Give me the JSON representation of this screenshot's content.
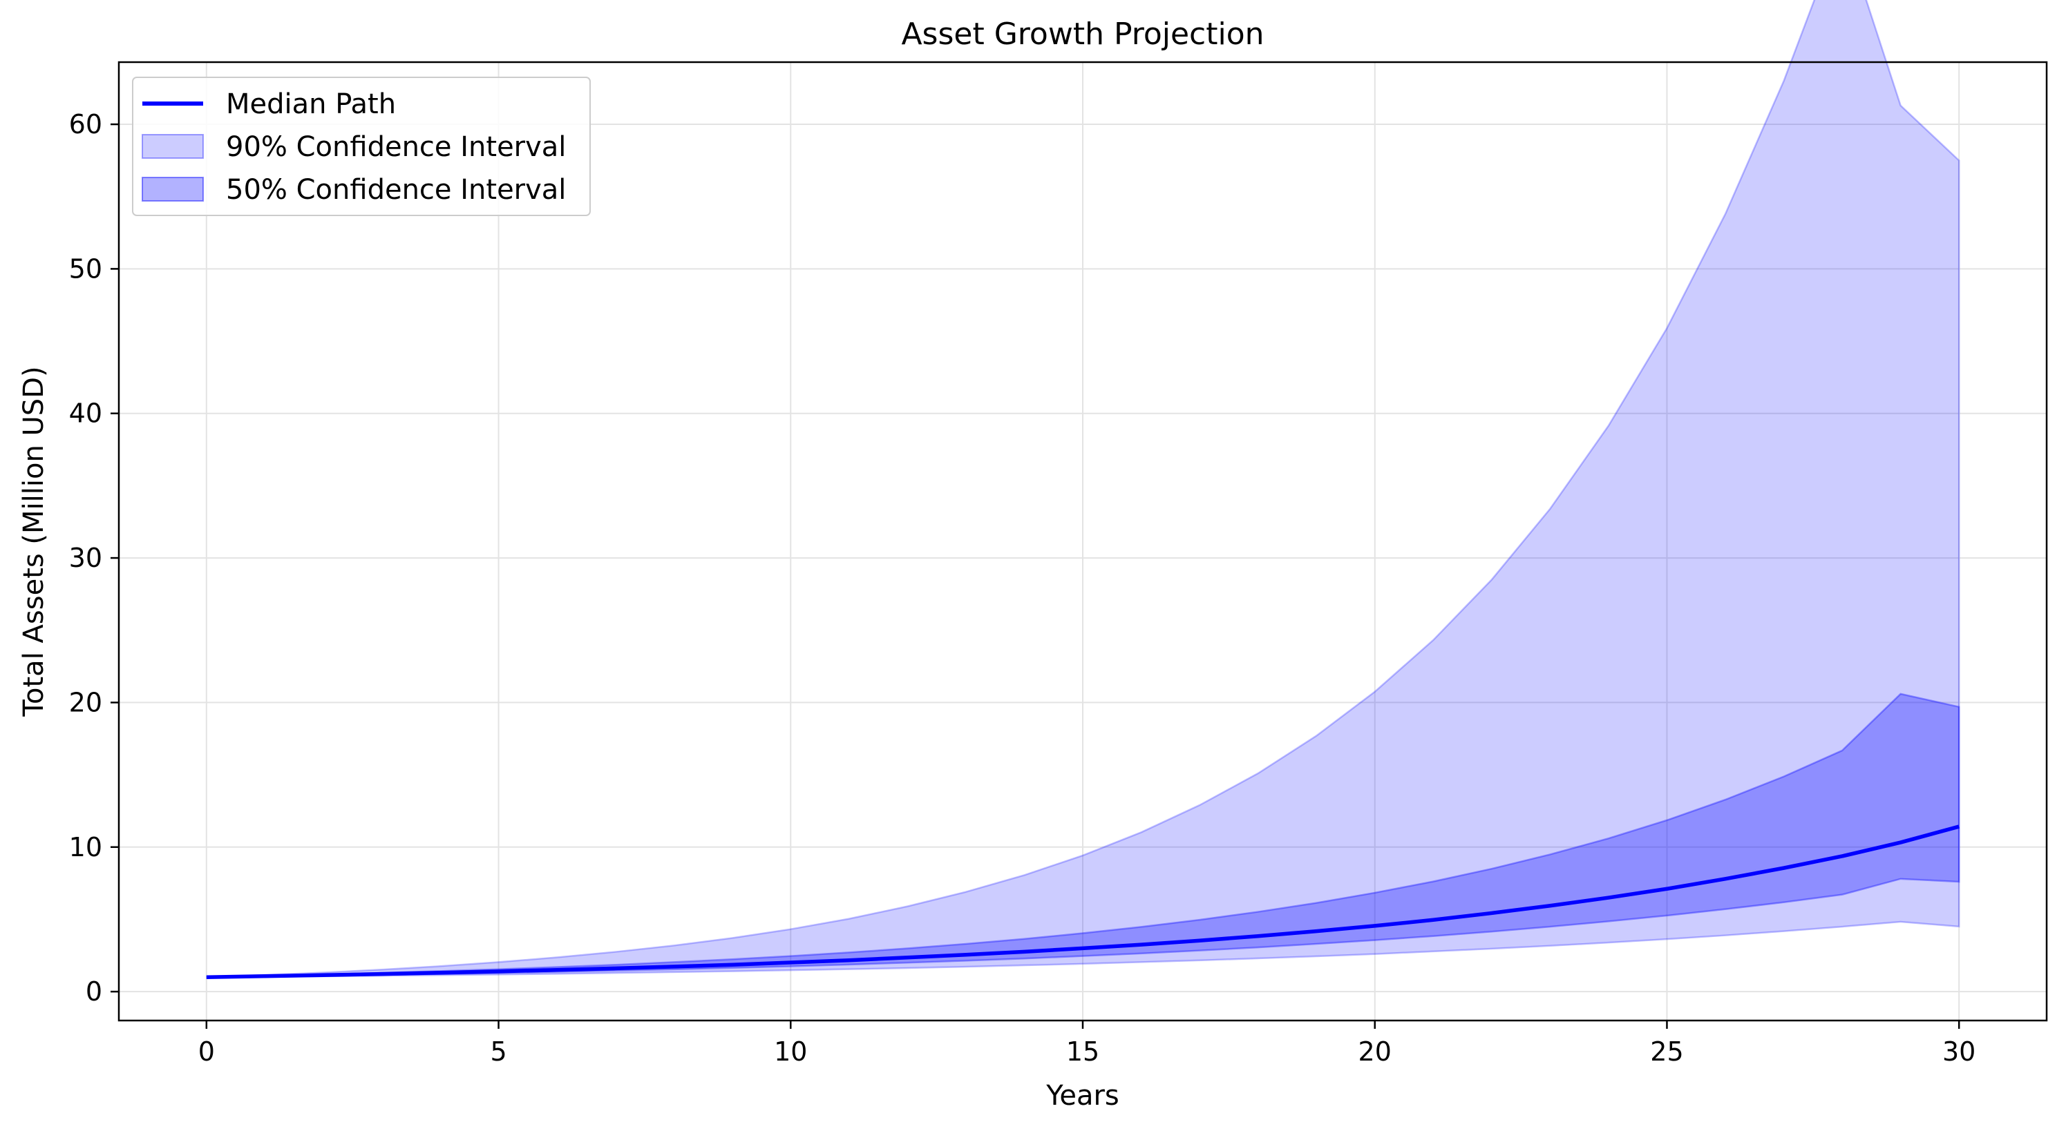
{
  "chart_data": {
    "type": "area",
    "title": "Asset Growth Projection",
    "xlabel": "Years",
    "ylabel": "Total Assets (Million USD)",
    "xlim": [
      -1.5,
      31.5
    ],
    "ylim": [
      -2,
      64.3
    ],
    "xticks": [
      0,
      5,
      10,
      15,
      20,
      25,
      30
    ],
    "yticks": [
      0,
      10,
      20,
      30,
      40,
      50,
      60
    ],
    "grid": true,
    "legend_position": "top-left",
    "x": [
      0,
      1,
      2,
      3,
      4,
      5,
      6,
      7,
      8,
      9,
      10,
      11,
      12,
      13,
      14,
      15,
      16,
      17,
      18,
      19,
      20,
      21,
      22,
      23,
      24,
      25,
      26,
      27,
      28,
      29,
      30
    ],
    "series": [
      {
        "name": "Median Path",
        "kind": "line",
        "color": "#0000ff",
        "values": [
          1.0,
          1.07,
          1.14,
          1.22,
          1.31,
          1.4,
          1.5,
          1.61,
          1.73,
          1.86,
          2.01,
          2.17,
          2.36,
          2.55,
          2.76,
          3.0,
          3.25,
          3.53,
          3.84,
          4.18,
          4.55,
          4.96,
          5.43,
          5.94,
          6.5,
          7.11,
          7.8,
          8.55,
          9.37,
          10.32,
          11.42
        ]
      },
      {
        "name": "90% Confidence Interval",
        "kind": "band",
        "color": "#0000ff",
        "opacity": 0.2,
        "lower": [
          1.0,
          1.03,
          1.06,
          1.1,
          1.14,
          1.18,
          1.23,
          1.29,
          1.35,
          1.41,
          1.48,
          1.55,
          1.63,
          1.72,
          1.82,
          1.92,
          2.04,
          2.16,
          2.3,
          2.44,
          2.6,
          2.78,
          2.97,
          3.17,
          3.39,
          3.63,
          3.89,
          4.18,
          4.49,
          4.83,
          4.5
        ],
        "upper": [
          1.0,
          1.15,
          1.32,
          1.52,
          1.76,
          2.04,
          2.37,
          2.75,
          3.19,
          3.71,
          4.32,
          5.04,
          5.9,
          6.9,
          8.06,
          9.42,
          11.02,
          12.9,
          15.1,
          17.7,
          20.75,
          24.32,
          28.5,
          33.4,
          39.15,
          45.9,
          53.8,
          63.0,
          73.7,
          61.3,
          57.5
        ]
      },
      {
        "name": "50% Confidence Interval",
        "kind": "band",
        "color": "#0000ff",
        "opacity": 0.3,
        "lower": [
          1.0,
          1.05,
          1.1,
          1.16,
          1.22,
          1.29,
          1.37,
          1.45,
          1.54,
          1.64,
          1.75,
          1.87,
          2.0,
          2.14,
          2.29,
          2.46,
          2.64,
          2.84,
          3.06,
          3.3,
          3.56,
          3.84,
          4.15,
          4.49,
          4.86,
          5.26,
          5.7,
          6.18,
          6.71,
          7.8,
          7.6
        ],
        "upper": [
          1.0,
          1.09,
          1.19,
          1.3,
          1.42,
          1.55,
          1.7,
          1.86,
          2.04,
          2.24,
          2.46,
          2.71,
          2.99,
          3.3,
          3.65,
          4.04,
          4.48,
          4.97,
          5.52,
          6.14,
          6.84,
          7.62,
          8.5,
          9.49,
          10.6,
          11.86,
          13.28,
          14.88,
          16.68,
          20.6,
          19.7
        ]
      }
    ]
  }
}
